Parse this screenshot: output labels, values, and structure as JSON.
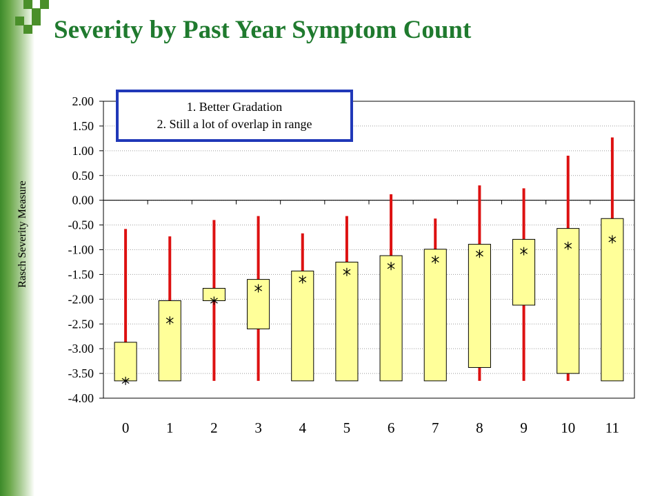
{
  "title": "Severity by Past Year Symptom Count",
  "colors": {
    "title": "#1f7a2e",
    "box_fill": "#ffff99",
    "range_line": "#dd1111",
    "note_border": "#2038b8",
    "grid": "#9a9a9a"
  },
  "annotation": {
    "lines": [
      "1. Better Gradation",
      "2. Still a lot of overlap in range"
    ]
  },
  "chart_data": {
    "type": "box",
    "title": "",
    "xlabel": "",
    "ylabel": "Rasch Severity Measure",
    "ylim": [
      -4.0,
      2.0
    ],
    "y_ticks": [
      "2.00",
      "1.50",
      "1.00",
      "0.50",
      "0.00",
      "-0.50",
      "-1.00",
      "-1.50",
      "-2.00",
      "-2.50",
      "-3.00",
      "-3.50",
      "-4.00"
    ],
    "categories": [
      "0",
      "1",
      "2",
      "3",
      "4",
      "5",
      "6",
      "7",
      "8",
      "9",
      "10",
      "11"
    ],
    "grid": true,
    "series": [
      {
        "category": "0",
        "range_low": -3.65,
        "range_high": -0.58,
        "box_low": -3.65,
        "box_high": -2.87,
        "mean": -3.65
      },
      {
        "category": "1",
        "range_low": -3.65,
        "range_high": -0.73,
        "box_low": -3.65,
        "box_high": -2.03,
        "mean": -2.43
      },
      {
        "category": "2",
        "range_low": -3.65,
        "range_high": -0.4,
        "box_low": -2.03,
        "box_high": -1.78,
        "mean": -2.03
      },
      {
        "category": "3",
        "range_low": -3.65,
        "range_high": -0.32,
        "box_low": -2.6,
        "box_high": -1.6,
        "mean": -1.78
      },
      {
        "category": "4",
        "range_low": -3.65,
        "range_high": -0.67,
        "box_low": -3.65,
        "box_high": -1.43,
        "mean": -1.6
      },
      {
        "category": "5",
        "range_low": -3.65,
        "range_high": -0.32,
        "box_low": -3.65,
        "box_high": -1.25,
        "mean": -1.45
      },
      {
        "category": "6",
        "range_low": -3.65,
        "range_high": 0.12,
        "box_low": -3.65,
        "box_high": -1.12,
        "mean": -1.33
      },
      {
        "category": "7",
        "range_low": -3.65,
        "range_high": -0.37,
        "box_low": -3.65,
        "box_high": -0.99,
        "mean": -1.2
      },
      {
        "category": "8",
        "range_low": -3.65,
        "range_high": 0.3,
        "box_low": -3.38,
        "box_high": -0.89,
        "mean": -1.08
      },
      {
        "category": "9",
        "range_low": -3.65,
        "range_high": 0.24,
        "box_low": -2.12,
        "box_high": -0.79,
        "mean": -1.03
      },
      {
        "category": "10",
        "range_low": -3.65,
        "range_high": 0.9,
        "box_low": -3.5,
        "box_high": -0.57,
        "mean": -0.92
      },
      {
        "category": "11",
        "range_low": -3.65,
        "range_high": 1.27,
        "box_low": -3.65,
        "box_high": -0.37,
        "mean": -0.79
      }
    ]
  }
}
